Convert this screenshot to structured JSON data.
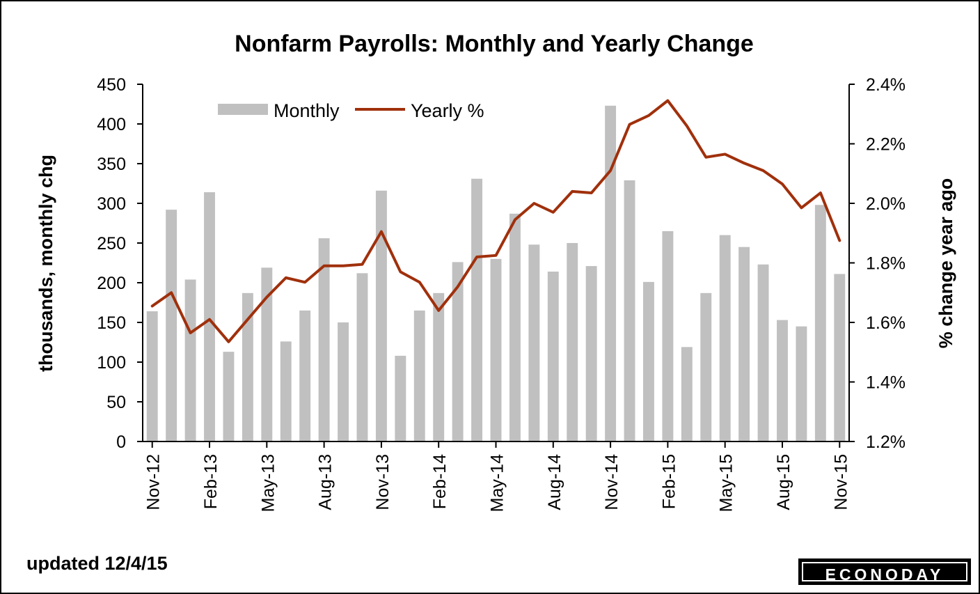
{
  "footer": {
    "updated": "updated 12/4/15",
    "brand": "ECONODAY"
  },
  "colors": {
    "bar": "#c0c0c0",
    "line": "#a0300c"
  },
  "chart_data": {
    "type": "bar+line",
    "title": "Nonfarm Payrolls: Monthly and Yearly Change",
    "ylabel_left": "thousands, monthly chg",
    "ylabel_right": "% change year ago",
    "ylim_left": [
      0,
      450
    ],
    "yticks_left": [
      "0",
      "50",
      "100",
      "150",
      "200",
      "250",
      "300",
      "350",
      "400",
      "450"
    ],
    "ylim_right": [
      1.2,
      2.4
    ],
    "yticks_right": [
      "1.2%",
      "1.4%",
      "1.6%",
      "1.8%",
      "2.0%",
      "2.2%",
      "2.4%"
    ],
    "x": [
      "Nov-12",
      "Dec-12",
      "Jan-13",
      "Feb-13",
      "Mar-13",
      "Apr-13",
      "May-13",
      "Jun-13",
      "Jul-13",
      "Aug-13",
      "Sep-13",
      "Oct-13",
      "Nov-13",
      "Dec-13",
      "Jan-14",
      "Feb-14",
      "Mar-14",
      "Apr-14",
      "May-14",
      "Jun-14",
      "Jul-14",
      "Aug-14",
      "Sep-14",
      "Oct-14",
      "Nov-14",
      "Dec-14",
      "Jan-15",
      "Feb-15",
      "Mar-15",
      "Apr-15",
      "May-15",
      "Jun-15",
      "Jul-15",
      "Aug-15",
      "Sep-15",
      "Oct-15",
      "Nov-15"
    ],
    "xtick_labels": [
      {
        "index": 0,
        "label": "Nov-12"
      },
      {
        "index": 3,
        "label": "Feb-13"
      },
      {
        "index": 6,
        "label": "May-13"
      },
      {
        "index": 9,
        "label": "Aug-13"
      },
      {
        "index": 12,
        "label": "Nov-13"
      },
      {
        "index": 15,
        "label": "Feb-14"
      },
      {
        "index": 18,
        "label": "May-14"
      },
      {
        "index": 21,
        "label": "Aug-14"
      },
      {
        "index": 24,
        "label": "Nov-14"
      },
      {
        "index": 27,
        "label": "Feb-15"
      },
      {
        "index": 30,
        "label": "May-15"
      },
      {
        "index": 33,
        "label": "Aug-15"
      },
      {
        "index": 36,
        "label": "Nov-15"
      }
    ],
    "series": [
      {
        "name": "Monthly",
        "type": "bar",
        "axis": "left",
        "values": [
          164,
          292,
          204,
          314,
          113,
          187,
          219,
          126,
          165,
          256,
          150,
          212,
          316,
          108,
          165,
          187,
          226,
          331,
          230,
          287,
          248,
          214,
          250,
          221,
          423,
          329,
          201,
          265,
          119,
          187,
          260,
          245,
          223,
          153,
          145,
          298,
          211
        ]
      },
      {
        "name": "Yearly %",
        "type": "line",
        "axis": "right",
        "values": [
          1.655,
          1.7,
          1.565,
          1.61,
          1.535,
          1.61,
          1.685,
          1.75,
          1.735,
          1.79,
          1.79,
          1.795,
          1.905,
          1.77,
          1.735,
          1.64,
          1.72,
          1.82,
          1.825,
          1.945,
          2.0,
          1.97,
          2.04,
          2.035,
          2.11,
          2.265,
          2.295,
          2.345,
          2.26,
          2.155,
          2.165,
          2.135,
          2.11,
          2.065,
          1.985,
          2.035,
          1.875
        ]
      }
    ],
    "legend": [
      "Monthly",
      "Yearly %"
    ]
  }
}
